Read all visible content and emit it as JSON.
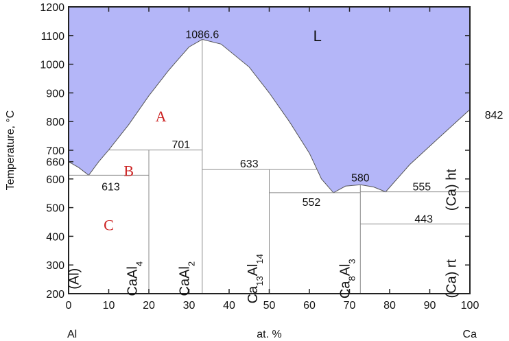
{
  "chart_data": {
    "type": "area",
    "title": "",
    "ylabel": "Temperature, °C",
    "xlabel": "at. %",
    "xlim": [
      0,
      100
    ],
    "ylim": [
      200,
      1200
    ],
    "x_ticks": [
      0,
      10,
      20,
      30,
      40,
      50,
      60,
      70,
      80,
      90,
      100
    ],
    "y_ticks": [
      200,
      300,
      400,
      500,
      600,
      700,
      800,
      900,
      1000,
      1100,
      1200
    ],
    "extra_y_ticks": [
      660
    ],
    "x_end_labels": {
      "left": "Al",
      "right": "Ca"
    },
    "liquidus": [
      {
        "x": 0,
        "y": 660
      },
      {
        "x": 2.5,
        "y": 640
      },
      {
        "x": 5,
        "y": 613
      },
      {
        "x": 7.5,
        "y": 660
      },
      {
        "x": 10,
        "y": 701
      },
      {
        "x": 15,
        "y": 790
      },
      {
        "x": 20,
        "y": 890
      },
      {
        "x": 25,
        "y": 980
      },
      {
        "x": 30,
        "y": 1060
      },
      {
        "x": 33.3,
        "y": 1086.6
      },
      {
        "x": 38,
        "y": 1070
      },
      {
        "x": 45,
        "y": 990
      },
      {
        "x": 50,
        "y": 900
      },
      {
        "x": 55,
        "y": 800
      },
      {
        "x": 60,
        "y": 690
      },
      {
        "x": 63,
        "y": 600
      },
      {
        "x": 66,
        "y": 552
      },
      {
        "x": 69,
        "y": 575
      },
      {
        "x": 72.7,
        "y": 580
      },
      {
        "x": 76,
        "y": 572
      },
      {
        "x": 79,
        "y": 555
      },
      {
        "x": 85,
        "y": 650
      },
      {
        "x": 92,
        "y": 740
      },
      {
        "x": 100,
        "y": 842
      }
    ],
    "horizontals": [
      {
        "x1": 0,
        "x2": 20,
        "y": 613
      },
      {
        "x1": 10,
        "x2": 33.3,
        "y": 701
      },
      {
        "x1": 33.3,
        "x2": 62,
        "y": 633
      },
      {
        "x1": 50,
        "x2": 72.7,
        "y": 552
      },
      {
        "x1": 72.7,
        "x2": 100,
        "y": 555
      },
      {
        "x1": 72.7,
        "x2": 100,
        "y": 443
      }
    ],
    "verticals": [
      {
        "x": 20,
        "y1": 200,
        "y2": 701
      },
      {
        "x": 33.3,
        "y1": 200,
        "y2": 1086.6
      },
      {
        "x": 50,
        "y1": 200,
        "y2": 633
      },
      {
        "x": 72.7,
        "y1": 200,
        "y2": 580
      }
    ],
    "annotations": [
      {
        "text": "1086.6",
        "x": 33.3,
        "y": 1105
      },
      {
        "text": "701",
        "x": 28,
        "y": 722
      },
      {
        "text": "613",
        "x": 10.5,
        "y": 575
      },
      {
        "text": "633",
        "x": 45,
        "y": 655
      },
      {
        "text": "580",
        "x": 72.7,
        "y": 605
      },
      {
        "text": "552",
        "x": 60.5,
        "y": 520
      },
      {
        "text": "555",
        "x": 88,
        "y": 575
      },
      {
        "text": "443",
        "x": 88.5,
        "y": 462
      },
      {
        "text": "842",
        "x": 106,
        "y": 825
      }
    ],
    "liquid_label": {
      "text": "L",
      "x": 62,
      "y": 1100
    },
    "region_labels": [
      {
        "text": "A",
        "x": 23,
        "y": 820
      },
      {
        "text": "B",
        "x": 15,
        "y": 630
      },
      {
        "text": "C",
        "x": 10,
        "y": 440
      }
    ],
    "phase_labels": [
      {
        "text": "(Al)",
        "x": 2.5,
        "y": 300,
        "sub": ""
      },
      {
        "text": "CaAl",
        "x": 17,
        "y": 300,
        "sub": "4"
      },
      {
        "text": "CaAl",
        "x": 30,
        "y": 300,
        "sub": "2"
      },
      {
        "text": "Ca",
        "x": 47,
        "y": 300,
        "sub": "13",
        "text2": "Al",
        "sub2": "14"
      },
      {
        "text": "Ca",
        "x": 70,
        "y": 300,
        "sub": "8",
        "text2": "Al",
        "sub2": "3"
      },
      {
        "text": "(Ca) ht",
        "x": 96.5,
        "y": 610,
        "sub": ""
      },
      {
        "text": "(Ca) rt",
        "x": 96.5,
        "y": 300,
        "sub": ""
      }
    ],
    "colors": {
      "liquid_fill": "#b4b6f8",
      "lines": "#8a8a8a",
      "axis": "#222222"
    }
  }
}
